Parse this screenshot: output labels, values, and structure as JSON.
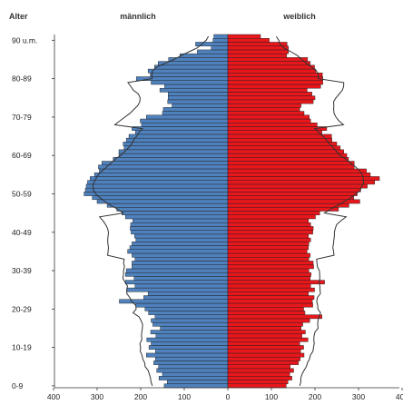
{
  "chart_data": {
    "type": "bar",
    "subtype": "population-pyramid",
    "y_header": "Alter",
    "left_header": "männlich",
    "right_header": "weiblich",
    "age_labels": [
      "0-9",
      "10-19",
      "20-29",
      "30-39",
      "40-49",
      "50-59",
      "60-69",
      "70-79",
      "80-89",
      "90 u.m."
    ],
    "x_tick_labels": [
      "400",
      "300",
      "200",
      "100",
      "0",
      "100",
      "200",
      "300",
      "400"
    ],
    "xlim": [
      -400,
      400
    ],
    "age_range": [
      0,
      90
    ],
    "grid": false,
    "colors": {
      "male": "#4f81bd",
      "female": "#e8171c",
      "outline": "#1f1f1f",
      "comparison": "#333333"
    },
    "series": [
      {
        "name": "männlich",
        "side": "left",
        "values": [
          146,
          139,
          158,
          150,
          163,
          159,
          170,
          166,
          187,
          166,
          181,
          176,
          186,
          165,
          177,
          155,
          172,
          176,
          167,
          182,
          190,
          211,
          249,
          193,
          183,
          232,
          213,
          235,
          215,
          235,
          233,
          220,
          220,
          213,
          220,
          230,
          225,
          220,
          211,
          214,
          222,
          224,
          223,
          218,
          235,
          243,
          255,
          277,
          300,
          311,
          330,
          327,
          325,
          322,
          316,
          306,
          295,
          297,
          289,
          263,
          250,
          250,
          238,
          240,
          233,
          227,
          212,
          220,
          198,
          201,
          187,
          150,
          148,
          128,
          138,
          137,
          137,
          156,
          145,
          176,
          210,
          178,
          183,
          168,
          160,
          136,
          110,
          70,
          38,
          74,
          34,
          32
        ]
      },
      {
        "name": "weiblich",
        "side": "right",
        "values": [
          134,
          138,
          147,
          142,
          151,
          143,
          162,
          166,
          175,
          167,
          174,
          165,
          184,
          170,
          178,
          168,
          172,
          188,
          216,
          177,
          174,
          195,
          194,
          198,
          185,
          199,
          190,
          222,
          189,
          191,
          186,
          197,
          196,
          186,
          189,
          182,
          185,
          186,
          190,
          185,
          195,
          196,
          190,
          185,
          201,
          211,
          254,
          278,
          303,
          289,
          297,
          305,
          320,
          337,
          348,
          327,
          318,
          290,
          290,
          277,
          273,
          266,
          258,
          250,
          239,
          238,
          216,
          227,
          205,
          190,
          187,
          175,
          165,
          168,
          196,
          200,
          193,
          182,
          213,
          218,
          218,
          217,
          202,
          199,
          189,
          183,
          135,
          139,
          139,
          136,
          95,
          75
        ]
      }
    ]
  }
}
